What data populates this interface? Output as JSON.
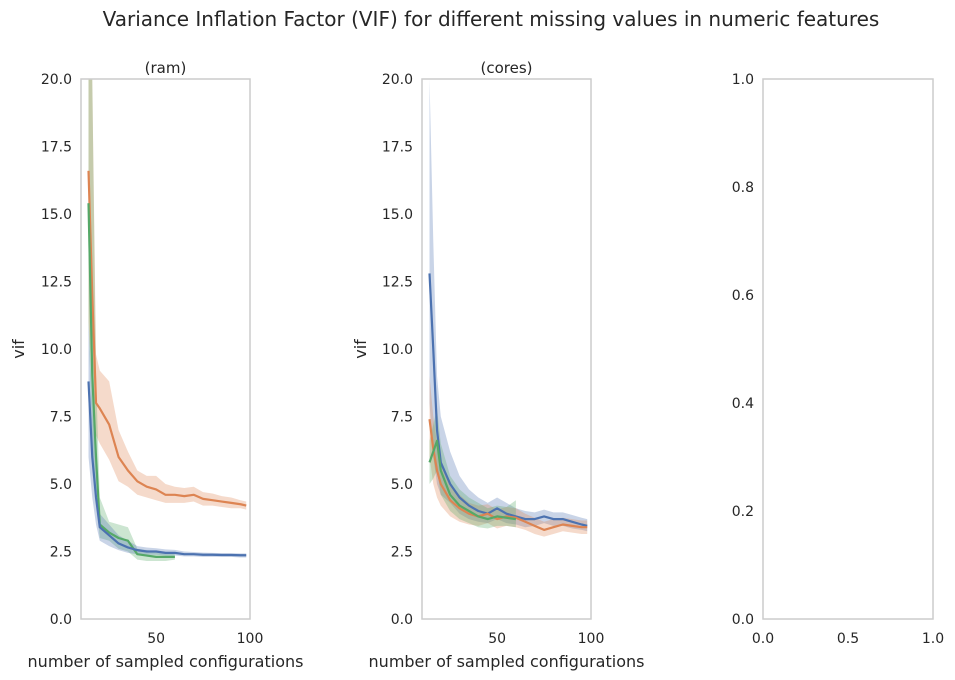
{
  "figure": {
    "title": "Variance Inflation Factor (VIF) for different missing values in numeric features"
  },
  "colors": {
    "blue": "#4c72b0",
    "orange": "#dd8452",
    "green": "#55a868",
    "frame": "#cccccc",
    "text": "#262626"
  },
  "chart_data": [
    {
      "type": "line",
      "title": "(ram)",
      "xlabel": "number of sampled configurations",
      "ylabel": "vif",
      "xlim": [
        10,
        100
      ],
      "ylim": [
        0,
        20
      ],
      "xticks": [
        50,
        100
      ],
      "yticks": [
        0.0,
        2.5,
        5.0,
        7.5,
        10.0,
        12.5,
        15.0,
        17.5,
        20.0
      ],
      "grid": false,
      "legend": "none",
      "series": [
        {
          "color": "#dd8452",
          "x": [
            14,
            16,
            18,
            20,
            25,
            30,
            35,
            40,
            45,
            50,
            55,
            60,
            65,
            70,
            75,
            80,
            85,
            90,
            95,
            98
          ],
          "y": [
            16.6,
            12.0,
            8.0,
            7.8,
            7.2,
            6.0,
            5.5,
            5.1,
            4.9,
            4.8,
            4.6,
            4.6,
            4.55,
            4.6,
            4.45,
            4.4,
            4.35,
            4.3,
            4.25,
            4.2
          ],
          "lower": [
            11.0,
            8.5,
            6.8,
            6.5,
            5.9,
            5.1,
            4.9,
            4.6,
            4.5,
            4.4,
            4.3,
            4.3,
            4.3,
            4.35,
            4.2,
            4.2,
            4.15,
            4.1,
            4.1,
            4.05
          ],
          "upper": [
            20.0,
            20.0,
            9.8,
            9.2,
            8.8,
            7.0,
            6.2,
            5.5,
            5.3,
            5.3,
            5.0,
            4.9,
            4.85,
            4.9,
            4.7,
            4.65,
            4.55,
            4.5,
            4.4,
            4.35
          ]
        },
        {
          "color": "#55a868",
          "x": [
            14,
            16,
            18,
            20,
            25,
            30,
            35,
            40,
            45,
            50,
            55,
            60
          ],
          "y": [
            15.4,
            9.0,
            6.0,
            3.5,
            3.2,
            3.0,
            2.9,
            2.4,
            2.35,
            2.3,
            2.3,
            2.3
          ],
          "lower": [
            11.0,
            6.5,
            4.5,
            3.0,
            2.9,
            2.6,
            2.5,
            2.2,
            2.15,
            2.15,
            2.15,
            2.2
          ],
          "upper": [
            20.0,
            20.0,
            9.0,
            4.5,
            3.6,
            3.5,
            3.4,
            2.6,
            2.55,
            2.5,
            2.45,
            2.4
          ]
        },
        {
          "color": "#4c72b0",
          "x": [
            14,
            16,
            18,
            20,
            25,
            30,
            35,
            40,
            45,
            50,
            55,
            60,
            65,
            70,
            75,
            80,
            85,
            90,
            95,
            98
          ],
          "y": [
            8.8,
            6.0,
            4.5,
            3.4,
            3.1,
            2.8,
            2.65,
            2.55,
            2.5,
            2.5,
            2.45,
            2.45,
            2.4,
            2.4,
            2.38,
            2.38,
            2.37,
            2.37,
            2.36,
            2.36
          ],
          "lower": [
            6.0,
            4.5,
            3.5,
            2.9,
            2.7,
            2.55,
            2.45,
            2.4,
            2.38,
            2.38,
            2.35,
            2.35,
            2.32,
            2.32,
            2.3,
            2.3,
            2.3,
            2.3,
            2.28,
            2.28
          ],
          "upper": [
            11.0,
            8.0,
            5.5,
            3.9,
            3.5,
            3.1,
            2.9,
            2.7,
            2.65,
            2.62,
            2.58,
            2.56,
            2.5,
            2.48,
            2.46,
            2.45,
            2.44,
            2.44,
            2.43,
            2.43
          ]
        }
      ]
    },
    {
      "type": "line",
      "title": "(cores)",
      "xlabel": "number of sampled configurations",
      "ylabel": "vif",
      "xlim": [
        10,
        100
      ],
      "ylim": [
        0,
        20
      ],
      "xticks": [
        50,
        100
      ],
      "yticks": [
        0.0,
        2.5,
        5.0,
        7.5,
        10.0,
        12.5,
        15.0,
        17.5,
        20.0
      ],
      "grid": false,
      "legend": "none",
      "series": [
        {
          "color": "#4c72b0",
          "x": [
            14,
            16,
            18,
            20,
            25,
            30,
            35,
            40,
            45,
            50,
            55,
            60,
            65,
            70,
            75,
            80,
            85,
            90,
            95,
            98
          ],
          "y": [
            12.8,
            10.0,
            7.0,
            5.8,
            5.0,
            4.5,
            4.2,
            4.0,
            3.9,
            4.1,
            3.9,
            3.8,
            3.7,
            3.7,
            3.8,
            3.7,
            3.7,
            3.6,
            3.5,
            3.45
          ],
          "lower": [
            8.0,
            6.0,
            5.0,
            4.6,
            4.3,
            3.9,
            3.7,
            3.6,
            3.55,
            3.7,
            3.55,
            3.5,
            3.4,
            3.45,
            3.55,
            3.45,
            3.45,
            3.35,
            3.3,
            3.25
          ],
          "upper": [
            20.0,
            14.0,
            9.0,
            7.5,
            6.2,
            5.3,
            4.8,
            4.5,
            4.3,
            4.5,
            4.3,
            4.1,
            4.0,
            3.95,
            4.05,
            3.95,
            3.95,
            3.85,
            3.75,
            3.7
          ]
        },
        {
          "color": "#dd8452",
          "x": [
            14,
            16,
            18,
            20,
            25,
            30,
            35,
            40,
            45,
            50,
            55,
            60,
            65,
            70,
            75,
            80,
            85,
            90,
            95,
            98
          ],
          "y": [
            7.4,
            6.3,
            5.5,
            5.0,
            4.4,
            4.1,
            3.9,
            3.8,
            3.9,
            3.7,
            3.8,
            3.75,
            3.6,
            3.45,
            3.3,
            3.4,
            3.5,
            3.45,
            3.4,
            3.4
          ],
          "lower": [
            6.0,
            5.0,
            4.5,
            4.2,
            3.8,
            3.6,
            3.5,
            3.45,
            3.55,
            3.35,
            3.45,
            3.4,
            3.3,
            3.15,
            3.05,
            3.15,
            3.25,
            3.2,
            3.15,
            3.15
          ],
          "upper": [
            9.0,
            7.5,
            6.5,
            5.8,
            5.0,
            4.6,
            4.3,
            4.2,
            4.25,
            4.05,
            4.15,
            4.1,
            3.9,
            3.75,
            3.6,
            3.7,
            3.75,
            3.7,
            3.65,
            3.65
          ]
        },
        {
          "color": "#55a868",
          "x": [
            14,
            16,
            18,
            20,
            25,
            30,
            35,
            40,
            45,
            50,
            55,
            60
          ],
          "y": [
            5.8,
            6.2,
            6.6,
            5.5,
            4.6,
            4.2,
            4.0,
            3.8,
            3.7,
            3.8,
            3.75,
            3.7
          ],
          "lower": [
            5.0,
            5.2,
            5.5,
            4.6,
            4.0,
            3.7,
            3.55,
            3.4,
            3.35,
            3.45,
            3.45,
            3.4
          ],
          "upper": [
            6.6,
            7.2,
            7.8,
            6.5,
            5.3,
            4.8,
            4.5,
            4.3,
            4.1,
            4.2,
            4.15,
            4.4
          ]
        }
      ]
    },
    {
      "type": "line",
      "title": "",
      "xlabel": "",
      "ylabel": "",
      "xlim": [
        0,
        1
      ],
      "ylim": [
        0,
        1
      ],
      "xticks": [
        0.0,
        0.5,
        1.0
      ],
      "yticks": [
        0.0,
        0.2,
        0.4,
        0.6,
        0.8,
        1.0
      ],
      "grid": false,
      "legend": "none",
      "series": []
    }
  ]
}
